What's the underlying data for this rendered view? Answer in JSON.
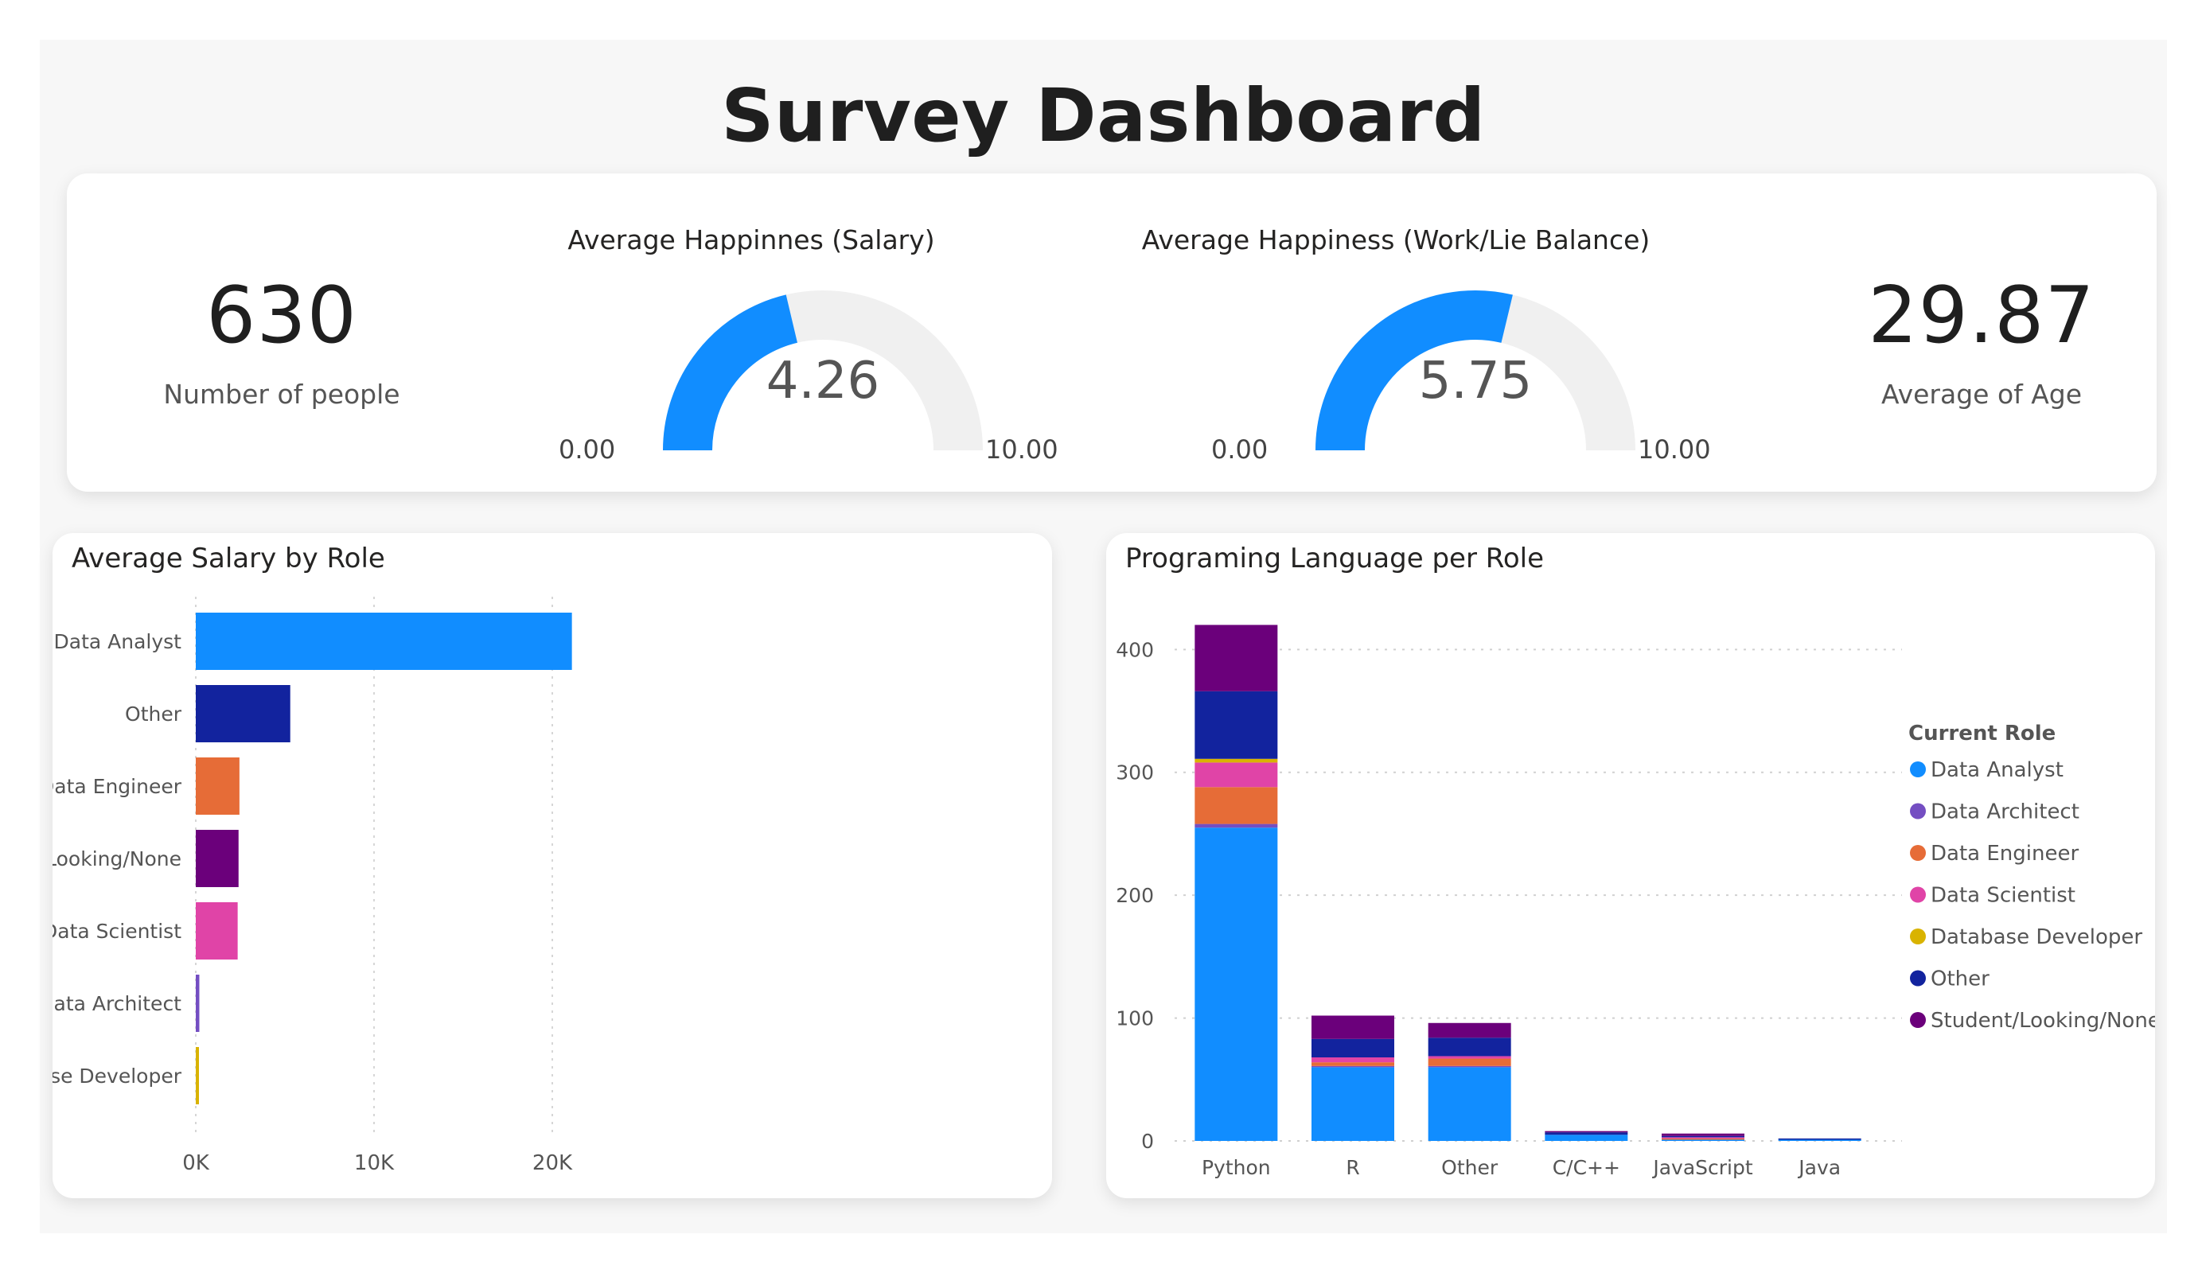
{
  "page": {
    "title": "Survey Dashboard"
  },
  "kpis": {
    "people": {
      "value": "630",
      "label": "Number of people"
    },
    "age": {
      "value": "29.87",
      "label": "Average of Age"
    }
  },
  "gauges": [
    {
      "title": "Average Happinnes (Salary)",
      "value": 4.26,
      "value_text": "4.26",
      "min": 0,
      "max": 10,
      "min_text": "0.00",
      "max_text": "10.00",
      "fill_color": "#118DFF",
      "track_color": "#F0F0F0"
    },
    {
      "title": "Average Happiness (Work/Lie Balance)",
      "value": 5.75,
      "value_text": "5.75",
      "min": 0,
      "max": 10,
      "min_text": "0.00",
      "max_text": "10.00",
      "fill_color": "#118DFF",
      "track_color": "#F0F0F0"
    }
  ],
  "chart_data": [
    {
      "type": "bar",
      "orientation": "horizontal",
      "title": "Average Salary by Role",
      "categories": [
        "Data Analyst",
        "Other",
        "Data Engineer",
        "Student/Looking/None",
        "Data Scientist",
        "Data Architect",
        "Database Developer"
      ],
      "values": [
        21100,
        5300,
        2450,
        2400,
        2350,
        200,
        150
      ],
      "colors": [
        "#118DFF",
        "#12239E",
        "#E66C37",
        "#6B007B",
        "#E044A7",
        "#744EC2",
        "#D9B300"
      ],
      "xlim": [
        0,
        25000
      ],
      "x_ticks": [
        0,
        10000,
        20000
      ],
      "x_tick_labels": [
        "0K",
        "10K",
        "20K"
      ],
      "grid": true
    },
    {
      "type": "bar",
      "stacked": true,
      "title": "Programing Language per Role",
      "categories": [
        "Python",
        "R",
        "Other",
        "C/C++",
        "JavaScript",
        "Java"
      ],
      "legend_title": "Current Role",
      "legend_position": "right",
      "series": [
        {
          "name": "Data Analyst",
          "color": "#118DFF",
          "values": [
            255,
            60,
            60,
            5,
            1,
            1
          ]
        },
        {
          "name": "Data Architect",
          "color": "#744EC2",
          "values": [
            3,
            1,
            1,
            0,
            0,
            0
          ]
        },
        {
          "name": "Data Engineer",
          "color": "#E66C37",
          "values": [
            30,
            3,
            6,
            0,
            1,
            0
          ]
        },
        {
          "name": "Data Scientist",
          "color": "#E044A7",
          "values": [
            20,
            4,
            2,
            0,
            1,
            0
          ]
        },
        {
          "name": "Database Developer",
          "color": "#D9B300",
          "values": [
            3,
            0,
            0,
            0,
            0,
            0
          ]
        },
        {
          "name": "Other",
          "color": "#12239E",
          "values": [
            55,
            15,
            15,
            2,
            1,
            1
          ]
        },
        {
          "name": "Student/Looking/None",
          "color": "#6B007B",
          "values": [
            54,
            19,
            12,
            1,
            2,
            0
          ]
        }
      ],
      "ylim": [
        0,
        430
      ],
      "y_ticks": [
        0,
        100,
        200,
        300,
        400
      ],
      "grid": true
    }
  ]
}
